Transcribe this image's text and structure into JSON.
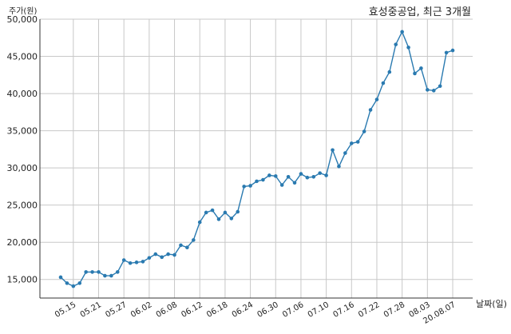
{
  "chart_data": {
    "type": "line",
    "title": "효성중공업, 최근 3개월",
    "ylabel": "주가(원)",
    "xlabel": "날짜(일)",
    "ylim": [
      12500,
      50000
    ],
    "yticks": [
      15000,
      20000,
      25000,
      30000,
      35000,
      40000,
      45000,
      50000
    ],
    "ytick_labels": [
      "15,000",
      "20,000",
      "25,000",
      "30,000",
      "35,000",
      "40,000",
      "45,000",
      "50,000"
    ],
    "xtick_labels": [
      "05.15",
      "05.21",
      "05.27",
      "06.02",
      "06.08",
      "06.12",
      "06.18",
      "06.24",
      "06.30",
      "07.06",
      "07.10",
      "07.16",
      "07.22",
      "07.28",
      "08.03",
      "20.08.07"
    ],
    "xtick_positions": [
      3,
      7,
      11,
      15,
      19,
      23,
      27,
      31,
      35,
      39,
      43,
      47,
      51,
      55,
      59,
      63
    ],
    "grid": true,
    "line_color": "#2a7ab0",
    "series": [
      {
        "values": [
          15300,
          14500,
          14100,
          14500,
          16000,
          16000,
          16000,
          15500,
          15500,
          16000,
          17600,
          17200,
          17300,
          17400,
          17900,
          18400,
          18000,
          18400,
          18300,
          19600,
          19300,
          20300,
          22700,
          24000,
          24300,
          23100,
          24000,
          23200,
          24100,
          27500,
          27600,
          28200,
          28400,
          29000,
          28900,
          27700,
          28800,
          28000,
          29200,
          28700,
          28800,
          29300,
          29000,
          32400,
          30200,
          32000,
          33300,
          33500,
          34900,
          37800,
          39200,
          41400,
          42900,
          46600,
          48300,
          46200,
          42700,
          43400,
          40500,
          40400,
          41000,
          45500,
          45800
        ]
      }
    ]
  }
}
